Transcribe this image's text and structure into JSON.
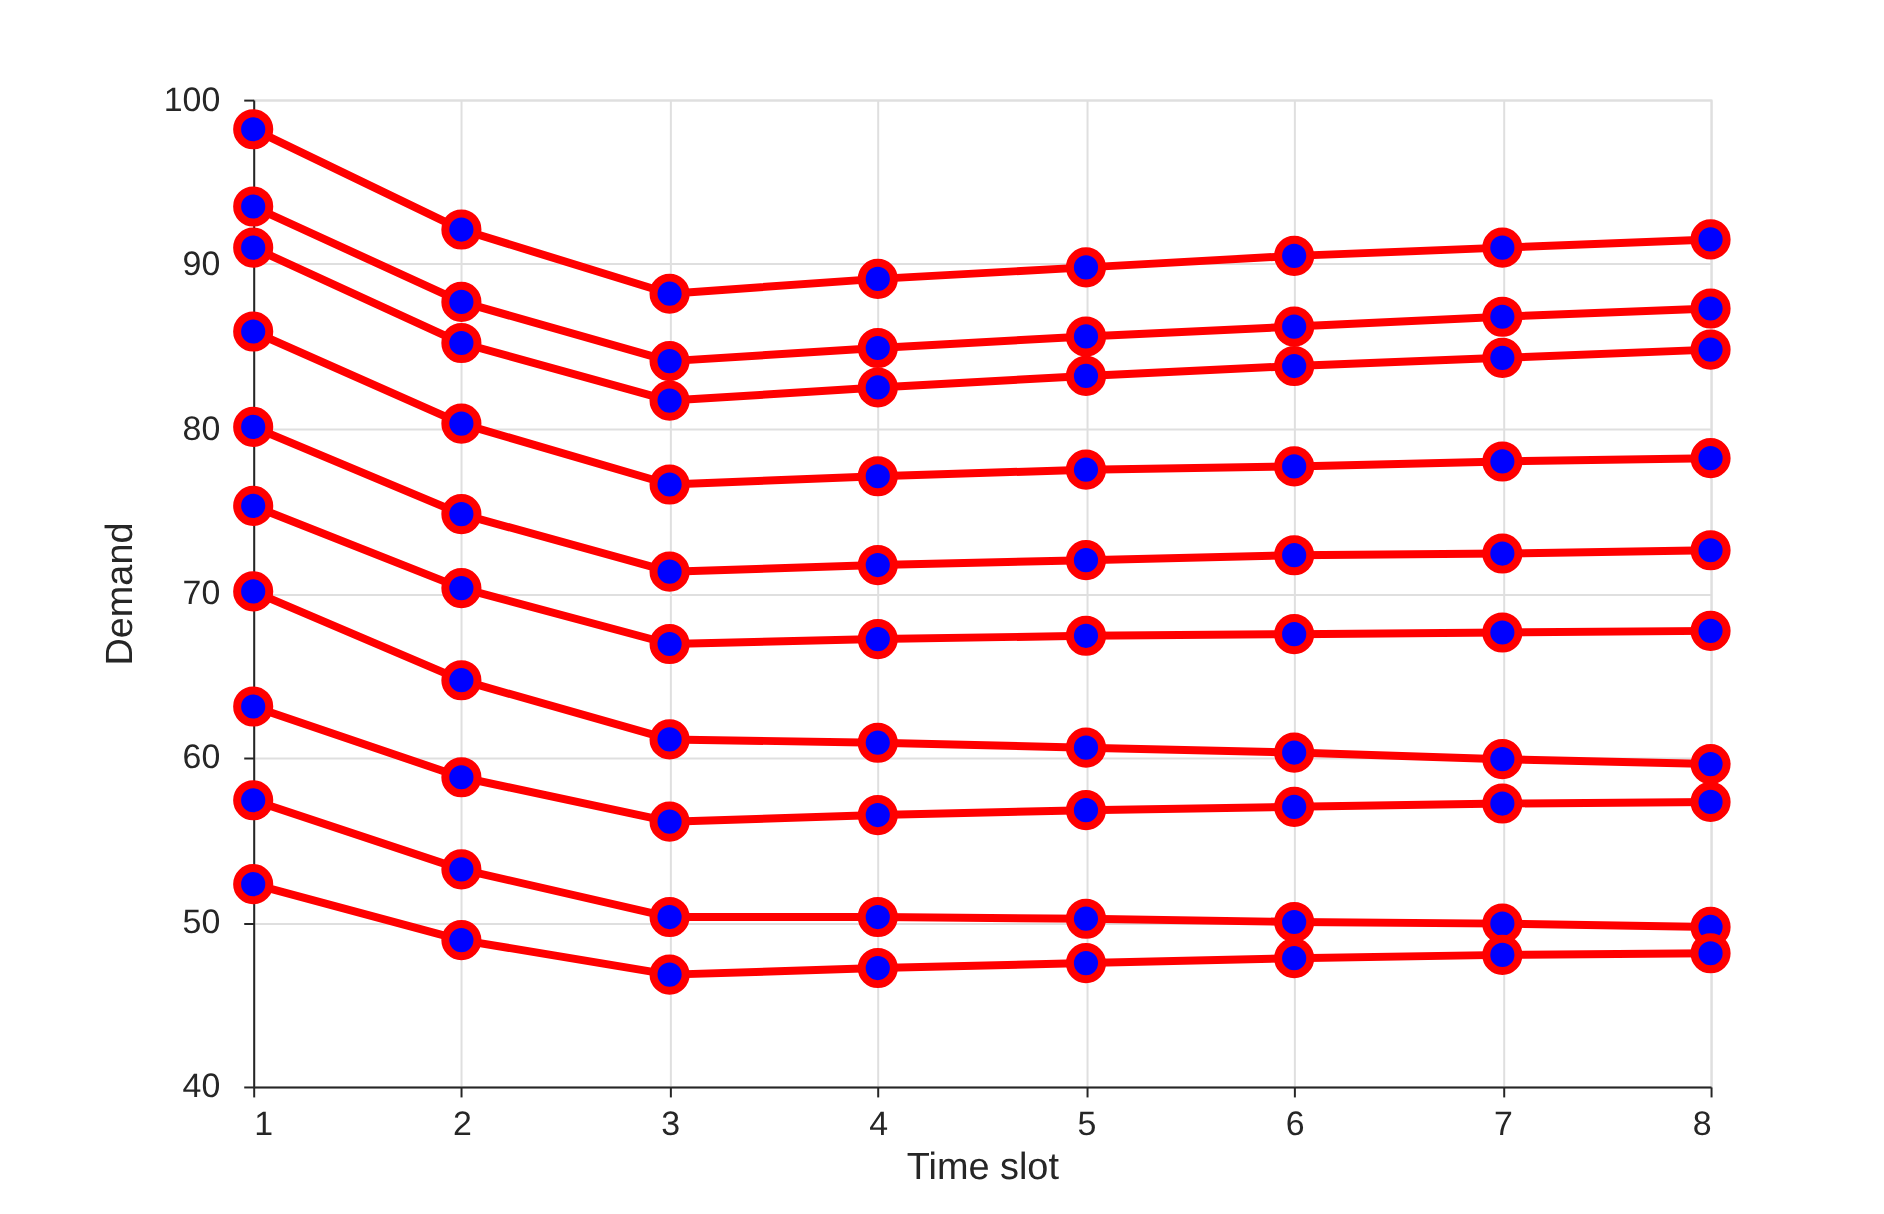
{
  "chart_data": {
    "type": "line",
    "xlabel": "Time slot",
    "ylabel": "Demand",
    "x": [
      1,
      2,
      3,
      4,
      5,
      6,
      7,
      8
    ],
    "series": [
      {
        "color": "#ff0000",
        "values": [
          98.2,
          92.1,
          88.2,
          89.1,
          89.8,
          90.5,
          91.0,
          91.5
        ]
      },
      {
        "color": "#ff0000",
        "values": [
          93.5,
          87.7,
          84.1,
          84.9,
          85.6,
          86.2,
          86.8,
          87.3
        ]
      },
      {
        "color": "#ff0000",
        "values": [
          91.0,
          85.2,
          81.7,
          82.5,
          83.2,
          83.8,
          84.3,
          84.8
        ]
      },
      {
        "color": "#ff0000",
        "values": [
          85.9,
          80.3,
          76.6,
          77.1,
          77.5,
          77.7,
          78.0,
          78.2
        ]
      },
      {
        "color": "#ff0000",
        "values": [
          80.1,
          74.8,
          71.3,
          71.7,
          72.0,
          72.3,
          72.4,
          72.6
        ]
      },
      {
        "color": "#ff0000",
        "values": [
          75.3,
          70.3,
          66.9,
          67.2,
          67.4,
          67.5,
          67.6,
          67.7
        ]
      },
      {
        "color": "#ff0000",
        "values": [
          70.1,
          64.7,
          61.1,
          60.9,
          60.6,
          60.3,
          59.9,
          59.6
        ]
      },
      {
        "color": "#ff0000",
        "values": [
          63.1,
          58.8,
          56.1,
          56.5,
          56.8,
          57.0,
          57.2,
          57.3
        ]
      },
      {
        "color": "#ff0000",
        "values": [
          57.4,
          53.2,
          50.3,
          50.3,
          50.2,
          50.0,
          49.9,
          49.7
        ]
      },
      {
        "color": "#ff0000",
        "values": [
          52.3,
          48.9,
          46.8,
          47.2,
          47.5,
          47.8,
          48.0,
          48.1
        ]
      }
    ],
    "xlim": [
      1,
      8
    ],
    "xticks": [
      1,
      2,
      3,
      4,
      5,
      6,
      7,
      8
    ],
    "ylim": [
      40,
      100
    ],
    "yticks": [
      40,
      50,
      60,
      70,
      80,
      90,
      100
    ],
    "grid": true,
    "marker": "circle",
    "line_style": "solid",
    "legend": false
  }
}
